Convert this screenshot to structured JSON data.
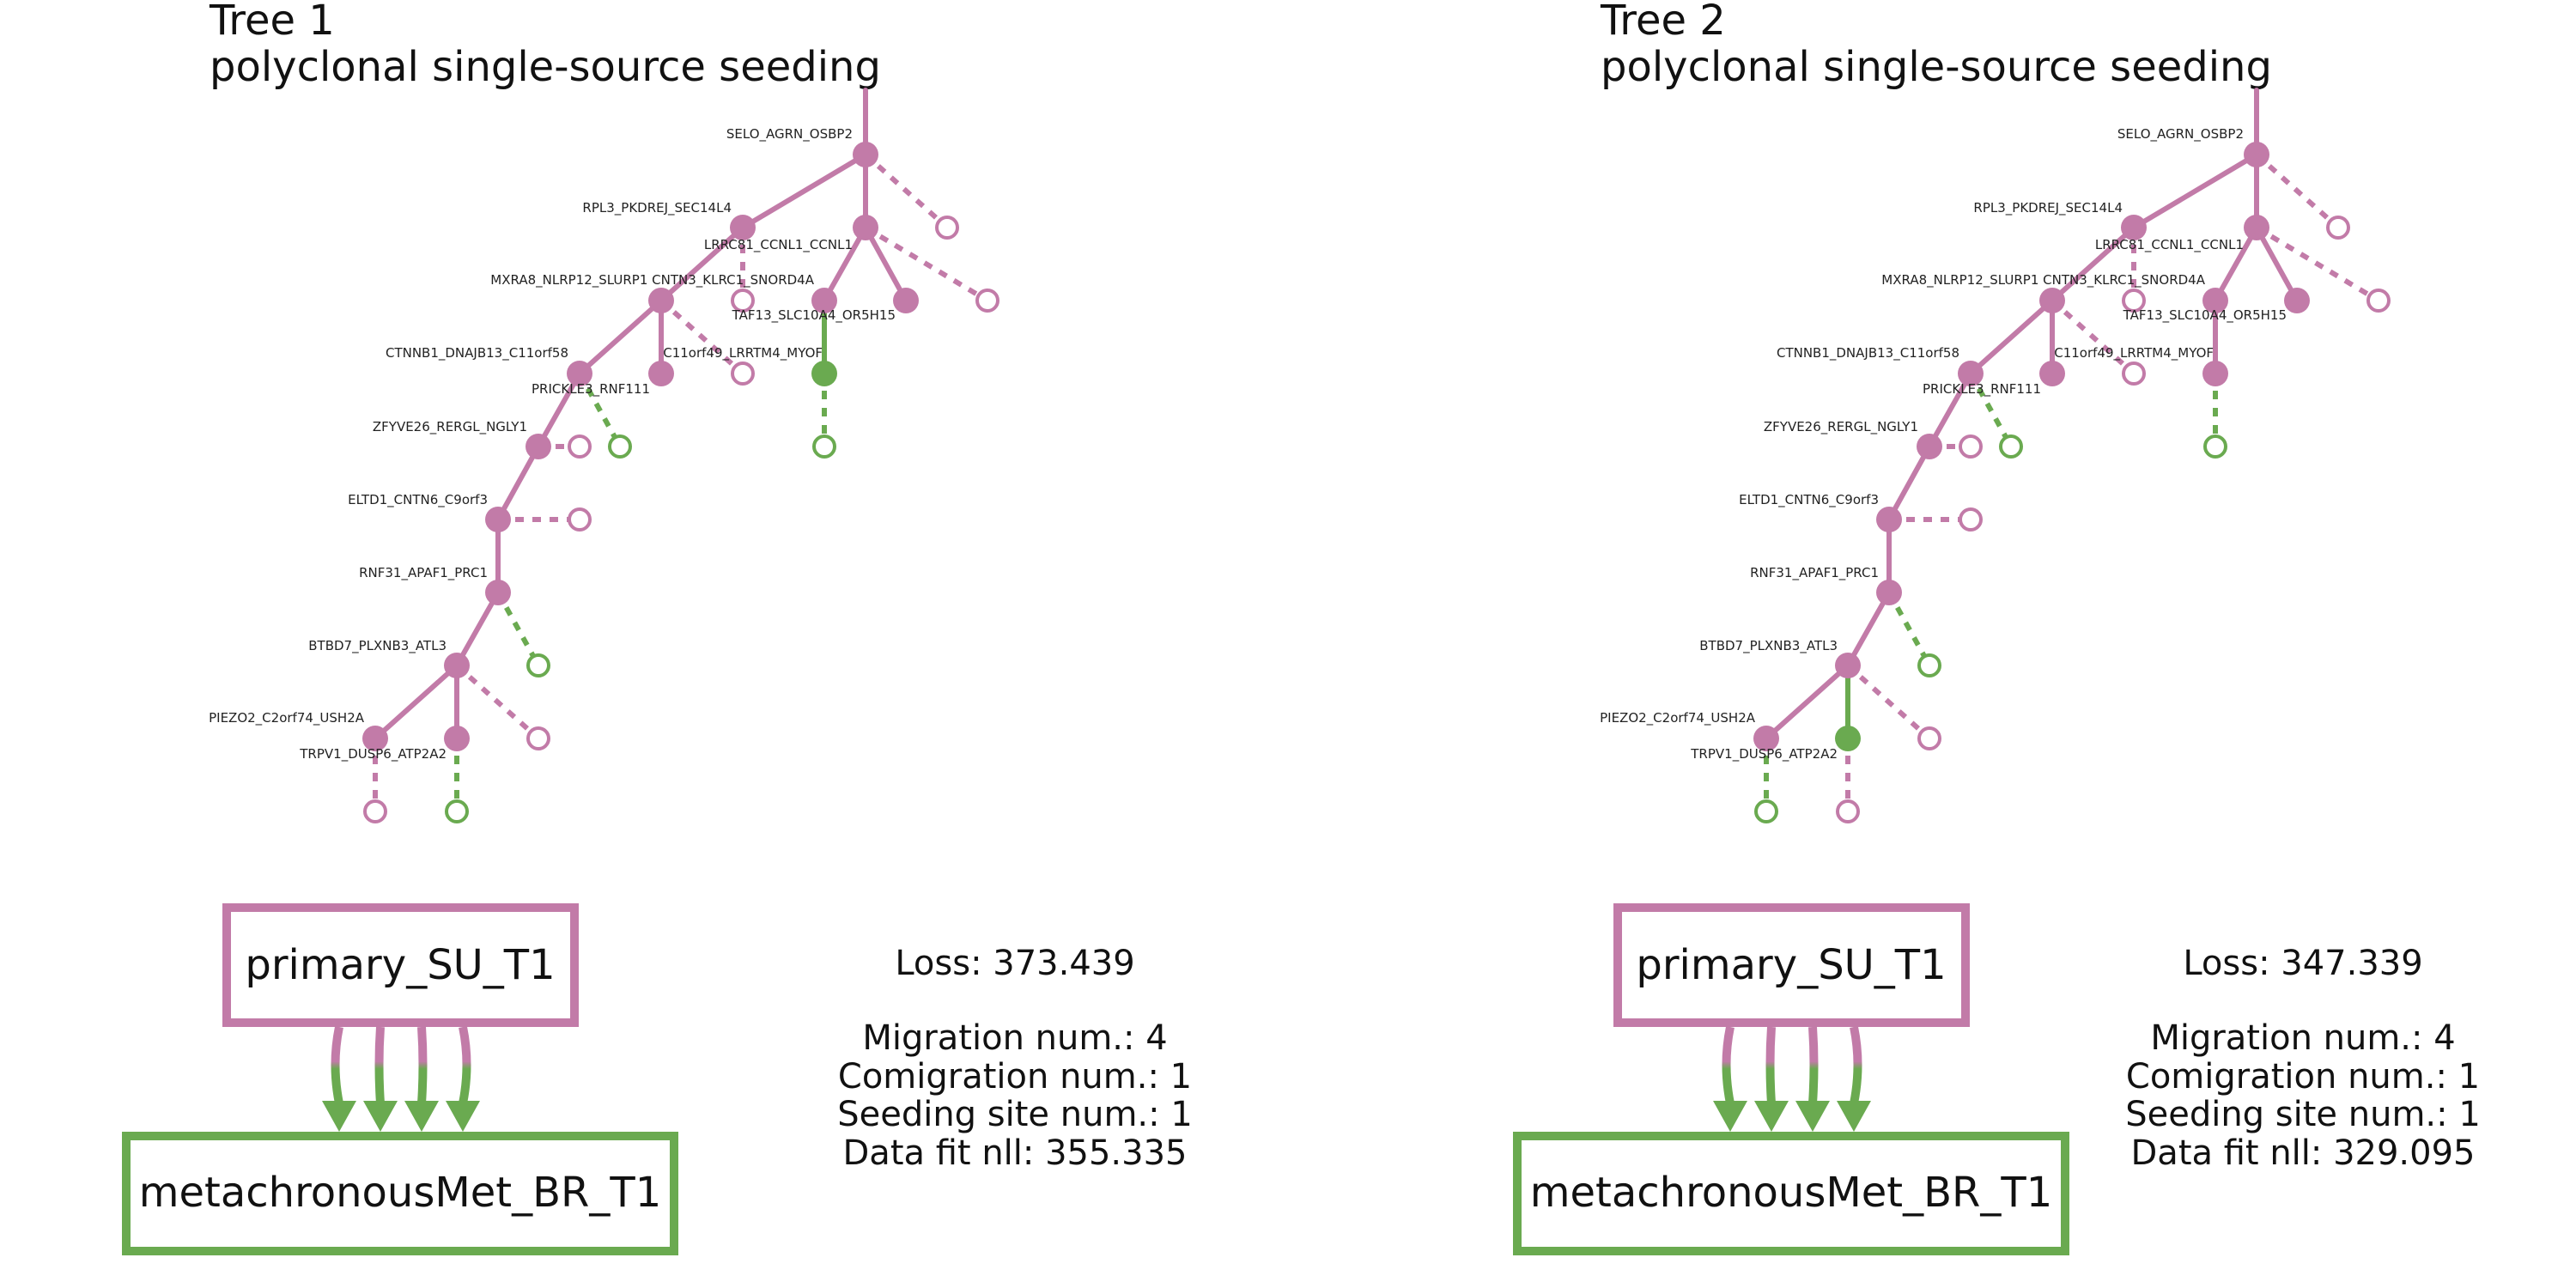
{
  "colors": {
    "primary": "#C27BA8",
    "met": "#6AAA50",
    "text": "#111111",
    "background": "#FFFFFF"
  },
  "node_labels": {
    "n1": "SELO_AGRN_OSBP2",
    "n2": "RPL3_PKDREJ_SEC14L4",
    "n3": "LRRC81_CCNL1_CCNL1",
    "n4": "MXRA8_NLRP12_SLURP1 CNTN3_KLRC1_SNORD4A",
    "n5": "TAF13_SLC10A4_OR5H15",
    "n6": "CTNNB1_DNAJB13_C11orf58",
    "n7": "C11orf49_LRRTM4_MYOF",
    "n8": "PRICKLE3_RNF111",
    "n9": "ZFYVE26_RERGL_NGLY1",
    "n10": "ELTD1_CNTN6_C9orf3",
    "n11": "RNF31_APAF1_PRC1",
    "n12": "BTBD7_PLXNB3_ATL3",
    "n13": "PIEZO2_C2orf74_USH2A",
    "n14": "TRPV1_DUSP6_ATP2A2"
  },
  "panels": [
    {
      "title": "Tree 1",
      "subtitle": "polyclonal single-source seeding",
      "primary_site": "primary_SU_T1",
      "met_site": "metachronousMet_BR_T1",
      "migration_arrows": 4,
      "loss_text": "Loss: 373.439",
      "migration_text": "Migration num.: 4",
      "comigration_text": "Comigration num.: 1",
      "seeding_text": "Seeding site num.: 1",
      "datafit_text": "Data fit nll: 355.335",
      "node_sites": {
        "n1": "primary",
        "n2": "primary",
        "n3": "primary",
        "n4": "primary",
        "n5": "primary",
        "n6": "primary",
        "n7": "primary",
        "n8": "primary",
        "n9": "primary",
        "n10": "primary",
        "n11": "primary",
        "n12": "primary",
        "n13": "primary",
        "n14": "primary",
        "n15": "primary",
        "n16": "met"
      },
      "leaf_sites": {
        "L1": "primary",
        "L2": "primary",
        "L3": "primary",
        "L4": "primary",
        "L5": "primary",
        "L6": "met",
        "L7": "primary",
        "L8": "met",
        "L9": "primary",
        "L10": "primary",
        "L11": "met"
      }
    },
    {
      "title": "Tree 2",
      "subtitle": "polyclonal single-source seeding",
      "primary_site": "primary_SU_T1",
      "met_site": "metachronousMet_BR_T1",
      "migration_arrows": 4,
      "loss_text": "Loss: 347.339",
      "migration_text": "Migration num.: 4",
      "comigration_text": "Comigration num.: 1",
      "seeding_text": "Seeding site num.: 1",
      "datafit_text": "Data fit nll: 329.095",
      "node_sites": {
        "n1": "primary",
        "n2": "primary",
        "n3": "primary",
        "n4": "primary",
        "n5": "primary",
        "n6": "primary",
        "n7": "primary",
        "n8": "primary",
        "n9": "primary",
        "n10": "primary",
        "n11": "primary",
        "n12": "primary",
        "n13": "primary",
        "n14": "met",
        "n15": "primary",
        "n16": "primary"
      },
      "leaf_sites": {
        "L1": "primary",
        "L2": "primary",
        "L3": "primary",
        "L4": "primary",
        "L5": "primary",
        "L6": "met",
        "L7": "primary",
        "L8": "met",
        "L9": "primary",
        "L10": "met",
        "L11": "primary"
      }
    }
  ]
}
